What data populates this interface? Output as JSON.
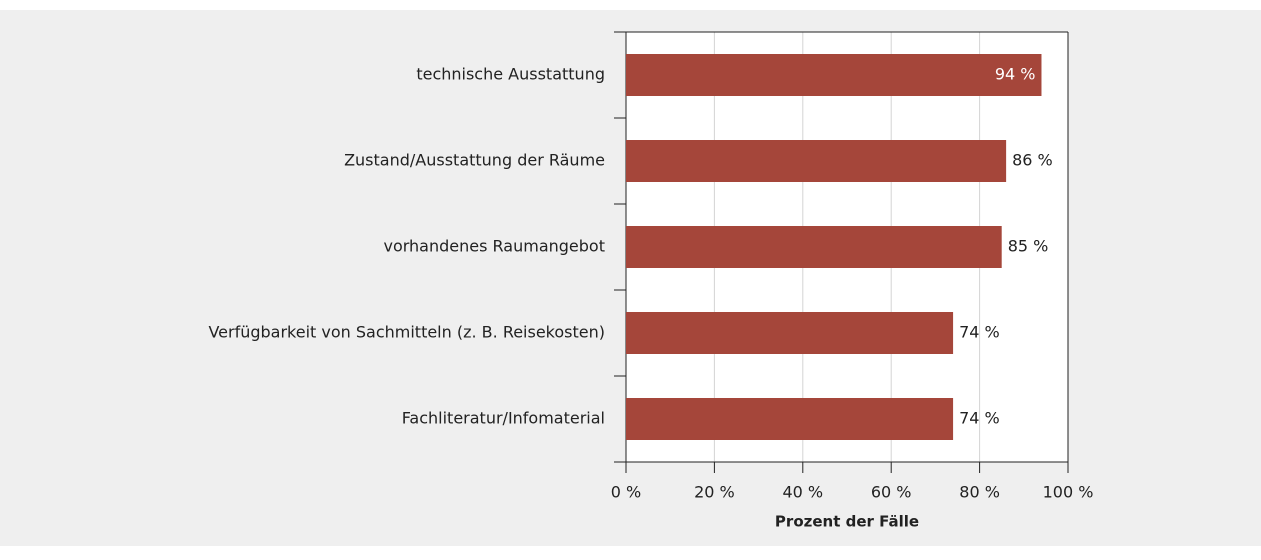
{
  "chart_data": {
    "type": "barh",
    "x_label": "Prozent der Fälle",
    "categories": [
      "technische Ausstattung",
      "Zustand/Ausstattung der Räume",
      "vorhandenes Raumangebot",
      "Verfügbarkeit von Sachmitteln (z. B. Reisekosten)",
      "Fachliteratur/Infomaterial"
    ],
    "values": [
      94,
      86,
      85,
      74,
      74
    ],
    "value_labels": [
      "94 %",
      "86 %",
      "85 %",
      "74 %",
      "74 %"
    ],
    "color": "#a5463a",
    "xlim": [
      0,
      100
    ],
    "xticks": [
      {
        "value": 0,
        "label": "0 %"
      },
      {
        "value": 20,
        "label": "20 %"
      },
      {
        "value": 40,
        "label": "40 %"
      },
      {
        "value": 60,
        "label": "60 %"
      },
      {
        "value": 80,
        "label": "80 %"
      },
      {
        "value": 100,
        "label": "100 %"
      }
    ],
    "grid": true
  }
}
